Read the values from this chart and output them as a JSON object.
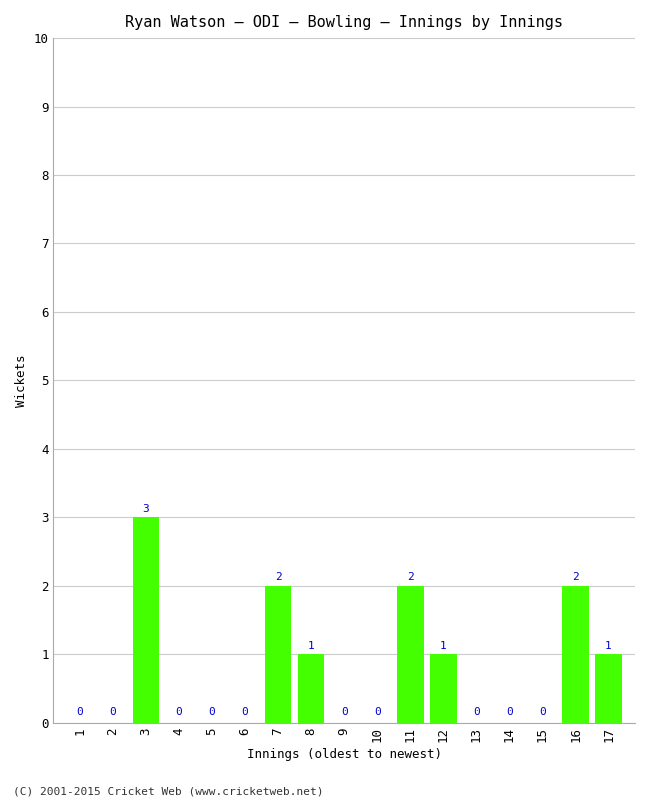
{
  "title": "Ryan Watson – ODI – Bowling – Innings by Innings",
  "xlabel": "Innings (oldest to newest)",
  "ylabel": "Wickets",
  "background_color": "#ffffff",
  "plot_background_color": "#ffffff",
  "bar_color": "#44ff00",
  "label_color": "#0000cc",
  "footer": "(C) 2001-2015 Cricket Web (www.cricketweb.net)",
  "innings": [
    1,
    2,
    3,
    4,
    5,
    6,
    7,
    8,
    9,
    10,
    11,
    12,
    13,
    14,
    15,
    16,
    17
  ],
  "wickets": [
    0,
    0,
    3,
    0,
    0,
    0,
    2,
    1,
    0,
    0,
    2,
    1,
    0,
    0,
    0,
    2,
    1
  ],
  "ylim": [
    0,
    10
  ],
  "yticks": [
    0,
    1,
    2,
    3,
    4,
    5,
    6,
    7,
    8,
    9,
    10
  ],
  "title_fontsize": 11,
  "axis_label_fontsize": 9,
  "tick_fontsize": 9,
  "bar_label_fontsize": 8,
  "footer_fontsize": 8
}
